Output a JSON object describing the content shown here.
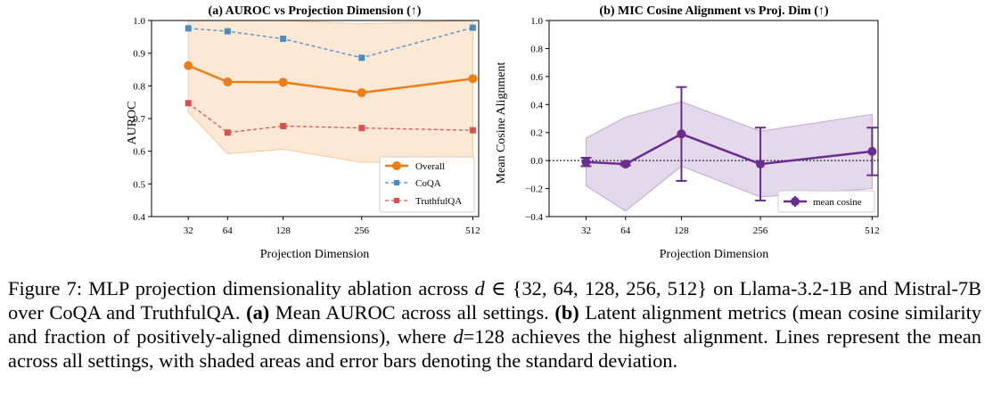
{
  "chart_data": [
    {
      "type": "line",
      "title": "(a) AUROC vs Projection Dimension (↑)",
      "xlabel": "Projection Dimension",
      "ylabel": "AUROC",
      "x": [
        32,
        64,
        128,
        256,
        512
      ],
      "x_tick_labels": [
        "32",
        "64",
        "128",
        "256",
        "512"
      ],
      "xlim": [
        12,
        528
      ],
      "ylim": [
        0.4,
        1.0
      ],
      "y_ticks": [
        0.4,
        0.5,
        0.6,
        0.7,
        0.8,
        0.9,
        1.0
      ],
      "y_tick_labels": [
        "0.4",
        "0.5",
        "0.6",
        "0.7",
        "0.8",
        "0.9",
        "1.0"
      ],
      "grid": false,
      "legend_position": "bottom-right",
      "series": [
        {
          "name": "Overall",
          "values": [
            0.862,
            0.812,
            0.811,
            0.779,
            0.822
          ],
          "color": "#ee7d15",
          "style": "solid",
          "marker": "circle",
          "band_low": [
            0.72,
            0.592,
            0.606,
            0.566,
            0.566
          ],
          "band_high": [
            1.0,
            1.03,
            1.02,
            0.99,
            1.08
          ]
        },
        {
          "name": "CoQA",
          "values": [
            0.976,
            0.967,
            0.944,
            0.886,
            0.978
          ],
          "color": "#4a8cc2",
          "style": "dashed",
          "marker": "square"
        },
        {
          "name": "TruthfulQA",
          "values": [
            0.747,
            0.657,
            0.677,
            0.671,
            0.664
          ],
          "color": "#dd4f4f",
          "style": "dashed",
          "marker": "square"
        }
      ]
    },
    {
      "type": "line",
      "title": "(b) MIC Cosine Alignment vs Proj. Dim (↑)",
      "xlabel": "Projection Dimension",
      "ylabel": "Mean Cosine Alignment",
      "x": [
        32,
        64,
        128,
        256,
        512
      ],
      "x_tick_labels": [
        "32",
        "64",
        "128",
        "256",
        "512"
      ],
      "xlim": [
        12,
        528
      ],
      "ylim": [
        -0.4,
        1.0
      ],
      "y_ticks": [
        -0.4,
        -0.2,
        0.0,
        0.2,
        0.4,
        0.6,
        0.8,
        1.0
      ],
      "y_tick_labels": [
        "−0.4",
        "−0.2",
        "0.0",
        "0.2",
        "0.4",
        "0.6",
        "0.8",
        "1.0"
      ],
      "grid": false,
      "legend_position": "bottom-right",
      "reference_line_y": 0.0,
      "series": [
        {
          "name": "mean cosine",
          "values": [
            -0.01,
            -0.025,
            0.19,
            -0.025,
            0.065
          ],
          "color": "#6a2c91",
          "style": "solid",
          "marker": "circle",
          "error": [
            0.03,
            0.01,
            0.335,
            0.26,
            0.17
          ],
          "band_low": [
            -0.18,
            -0.36,
            -0.04,
            -0.26,
            -0.2
          ],
          "band_high": [
            0.16,
            0.31,
            0.42,
            0.21,
            0.33
          ]
        }
      ]
    }
  ],
  "caption": {
    "p1": "Figure 7: MLP projection dimensionality ablation across ",
    "m1": "d",
    "p2": " ∈ {32, 64, 128, 256, 512} on Llama-3.2-1B and Mistral-7B over CoQA and TruthfulQA. ",
    "b1": "(a)",
    "p3": " Mean AUROC across all settings. ",
    "b2": "(b)",
    "p4": " Latent alignment metrics (mean cosine similarity and fraction of positively-aligned dimensions), where ",
    "m2": "d",
    "p5": "=128 achieves the highest alignment. Lines represent the mean across all settings, with shaded areas and error bars denoting the standard deviation."
  },
  "colors": {
    "overall": "#ee7d15",
    "coqa": "#4a8cc2",
    "truthfulqa": "#dd4f4f",
    "mic": "#6a2c91"
  }
}
